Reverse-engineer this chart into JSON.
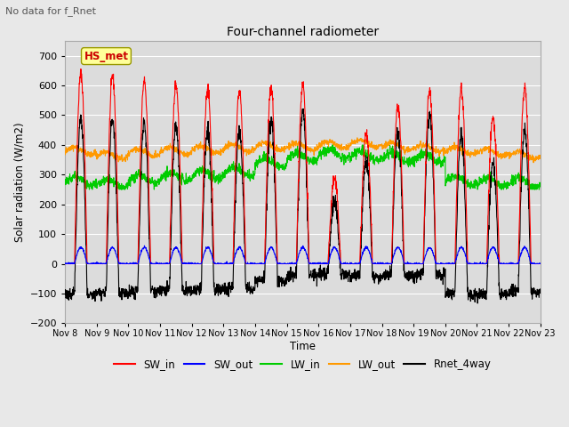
{
  "title": "Four-channel radiometer",
  "subtitle": "No data for f_Rnet",
  "ylabel": "Solar radiation (W/m2)",
  "xlabel": "Time",
  "ylim": [
    -200,
    750
  ],
  "yticks": [
    -200,
    -100,
    0,
    100,
    200,
    300,
    400,
    500,
    600,
    700
  ],
  "x_labels": [
    "Nov 8",
    "Nov 9",
    "Nov 10",
    "Nov 11",
    "Nov 12",
    "Nov 13",
    "Nov 14",
    "Nov 15",
    "Nov 16",
    "Nov 17",
    "Nov 18",
    "Nov 19",
    "Nov 20",
    "Nov 21",
    "Nov 22",
    "Nov 23"
  ],
  "num_days": 15,
  "fig_bg_color": "#e8e8e8",
  "plot_bg_color": "#dcdcdc",
  "grid_color": "#ffffff",
  "annotation_text": "HS_met",
  "annotation_color": "#cc0000",
  "annotation_bg": "#ffff99",
  "annotation_edge": "#999900",
  "colors": {
    "SW_in": "#ff0000",
    "SW_out": "#0000ff",
    "LW_in": "#00cc00",
    "LW_out": "#ff9900",
    "Rnet_4way": "#000000"
  },
  "legend_entries": [
    "SW_in",
    "SW_out",
    "LW_in",
    "LW_out",
    "Rnet_4way"
  ],
  "SW_in_peaks": [
    640,
    630,
    615,
    605,
    590,
    580,
    595,
    600,
    285,
    440,
    530,
    580,
    590,
    490,
    595
  ],
  "LW_in_base": [
    280,
    270,
    285,
    295,
    300,
    310,
    340,
    360,
    370,
    365,
    360,
    355,
    280,
    275,
    275
  ],
  "LW_out_base": [
    380,
    365,
    375,
    380,
    385,
    390,
    395,
    395,
    400,
    405,
    395,
    390,
    380,
    375,
    365
  ]
}
